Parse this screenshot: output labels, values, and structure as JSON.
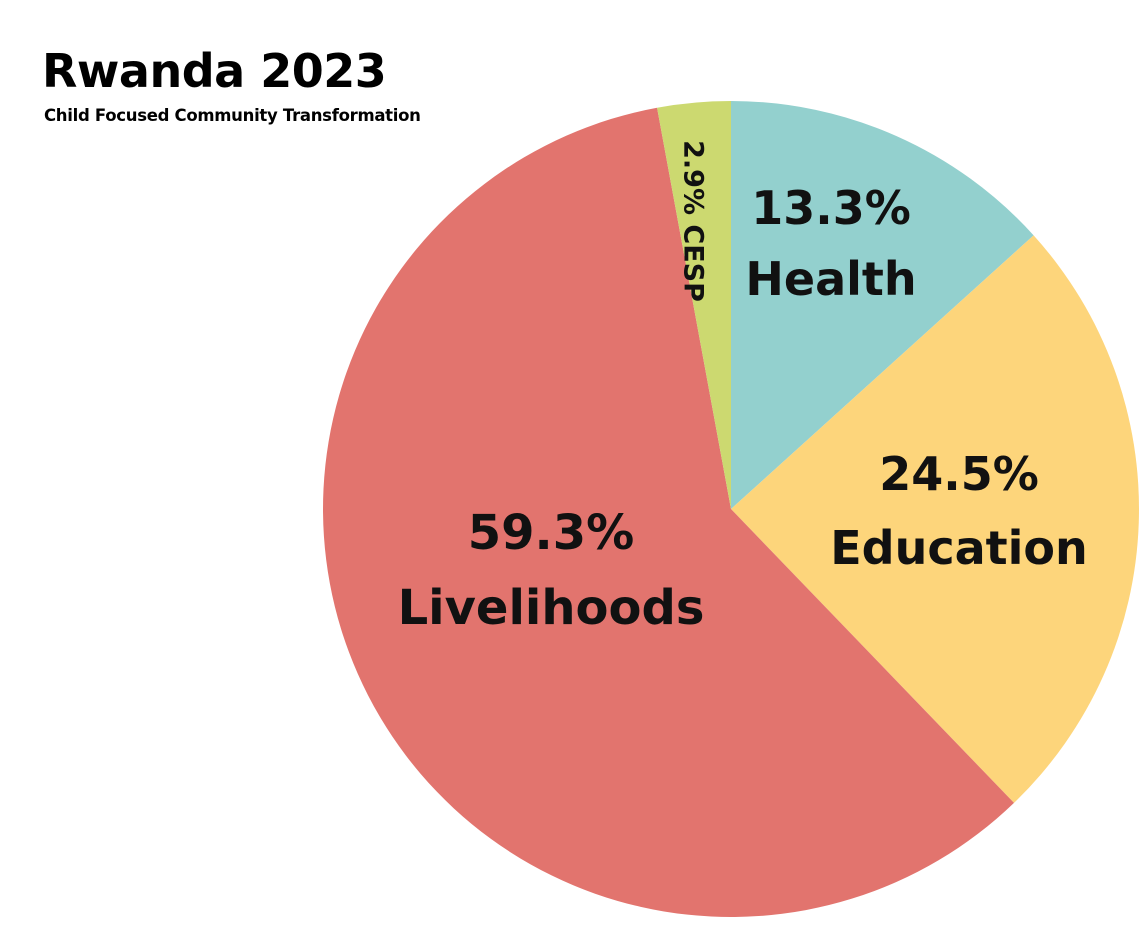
{
  "chart_data": {
    "type": "pie",
    "title": "Rwanda 2023",
    "subtitle": "Child Focused Community Transformation",
    "slices": [
      {
        "name": "Health",
        "value": 13.3,
        "percent_label": "13.3%",
        "color": "#93d0ce"
      },
      {
        "name": "Education",
        "value": 24.5,
        "percent_label": "24.5%",
        "color": "#fdd57b"
      },
      {
        "name": "Livelihoods",
        "value": 59.3,
        "percent_label": "59.3%",
        "color": "#e2746e"
      },
      {
        "name": "CESP",
        "value": 2.9,
        "percent_label": "2.9%",
        "color": "#ccd970"
      }
    ],
    "start_angle_deg": 0,
    "direction": "clockwise",
    "legend": "none",
    "labels": "inside-slices"
  }
}
